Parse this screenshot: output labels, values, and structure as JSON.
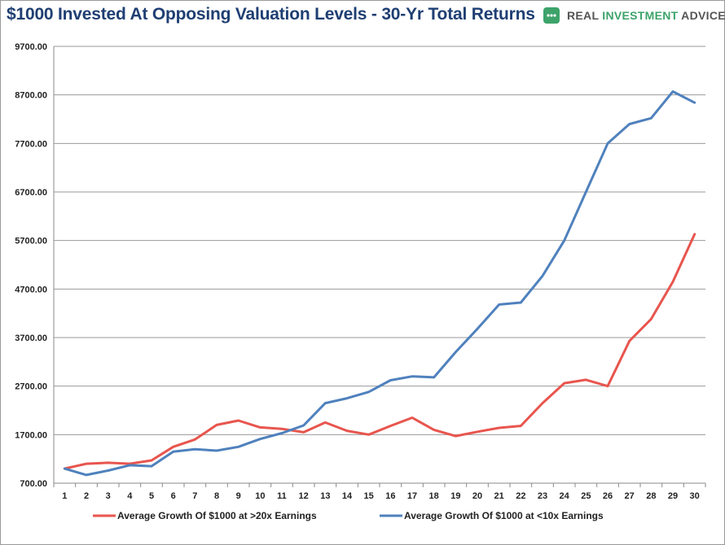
{
  "title": "$1000 Invested At Opposing Valuation Levels - 30-Yr Total Returns",
  "logo": {
    "word_a": "REAL",
    "word_b": "INVESTMENT",
    "word_c": "ADVICE",
    "icon": "chat-bubble-icon",
    "accent": "#3da36a"
  },
  "chart_data": {
    "type": "line",
    "title": "$1000 Invested At Opposing Valuation Levels - 30-Yr Total Returns",
    "xlabel": "",
    "ylabel": "",
    "x": [
      1,
      2,
      3,
      4,
      5,
      6,
      7,
      8,
      9,
      10,
      11,
      12,
      13,
      14,
      15,
      16,
      17,
      18,
      19,
      20,
      21,
      22,
      23,
      24,
      25,
      26,
      27,
      28,
      29,
      30
    ],
    "ylim": [
      700,
      9700
    ],
    "yticks": [
      "700.00",
      "1700.00",
      "2700.00",
      "3700.00",
      "4700.00",
      "5700.00",
      "6700.00",
      "7700.00",
      "8700.00",
      "9700.00"
    ],
    "grid": true,
    "legend_position": "bottom",
    "series": [
      {
        "name": "Average Growth Of $1000 at >20x Earnings",
        "color": "#e8554e",
        "values": [
          1000,
          1100,
          1120,
          1100,
          1170,
          1450,
          1600,
          1900,
          1990,
          1850,
          1820,
          1750,
          1950,
          1780,
          1700,
          1880,
          2050,
          1800,
          1670,
          1760,
          1840,
          1880,
          2350,
          2760,
          2830,
          2700,
          3630,
          4080,
          4850,
          5830
        ]
      },
      {
        "name": "Average Growth Of $1000 at <10x Earnings",
        "color": "#4f81bd",
        "values": [
          1000,
          870,
          960,
          1070,
          1050,
          1350,
          1400,
          1370,
          1450,
          1610,
          1730,
          1890,
          2350,
          2450,
          2580,
          2820,
          2900,
          2880,
          3400,
          3880,
          4380,
          4420,
          4970,
          5700,
          6700,
          7700,
          8100,
          8220,
          8770,
          8540
        ]
      }
    ]
  }
}
